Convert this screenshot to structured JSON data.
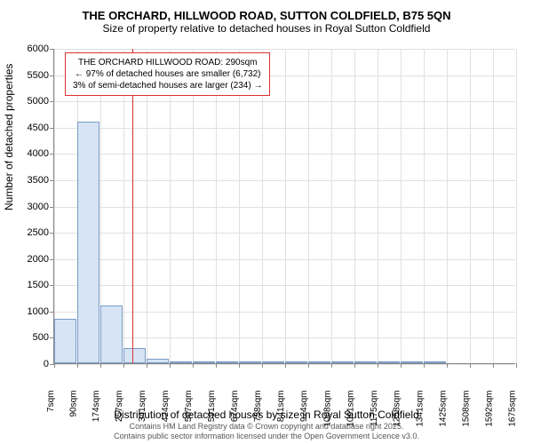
{
  "title": "THE ORCHARD, HILLWOOD ROAD, SUTTON COLDFIELD, B75 5QN",
  "subtitle": "Size of property relative to detached houses in Royal Sutton Coldfield",
  "chart": {
    "type": "histogram",
    "ylabel": "Number of detached properties",
    "xlabel": "Distribution of detached houses by size in Royal Sutton Coldfield",
    "ylim": [
      0,
      6000
    ],
    "ytick_step": 500,
    "yticks": [
      0,
      500,
      1000,
      1500,
      2000,
      2500,
      3000,
      3500,
      4000,
      4500,
      5000,
      5500,
      6000
    ],
    "xticks": [
      "7sqm",
      "90sqm",
      "174sqm",
      "257sqm",
      "341sqm",
      "424sqm",
      "507sqm",
      "591sqm",
      "674sqm",
      "758sqm",
      "841sqm",
      "924sqm",
      "1008sqm",
      "1091sqm",
      "1175sqm",
      "1258sqm",
      "1341sqm",
      "1425sqm",
      "1508sqm",
      "1592sqm",
      "1675sqm"
    ],
    "values": [
      850,
      4600,
      1100,
      280,
      90,
      30,
      20,
      10,
      5,
      5,
      3,
      3,
      2,
      1,
      1,
      1,
      1,
      0,
      0,
      0
    ],
    "bar_color": "#d6e4f5",
    "bar_border": "#7a9bc4",
    "grid_color": "#e0e0e0",
    "background_color": "#ffffff",
    "marker_line_color": "#dd3333",
    "marker_position_index": 3.4,
    "title_fontsize": 13,
    "subtitle_fontsize": 12,
    "label_fontsize": 12,
    "tick_fontsize": 11
  },
  "annotation": {
    "line1": "THE ORCHARD HILLWOOD ROAD: 290sqm",
    "line2": "← 97% of detached houses are smaller (6,732)",
    "line3": "3% of semi-detached houses are larger (234) →"
  },
  "footer": {
    "line1": "Contains HM Land Registry data © Crown copyright and database right 2025.",
    "line2": "Contains public sector information licensed under the Open Government Licence v3.0."
  }
}
